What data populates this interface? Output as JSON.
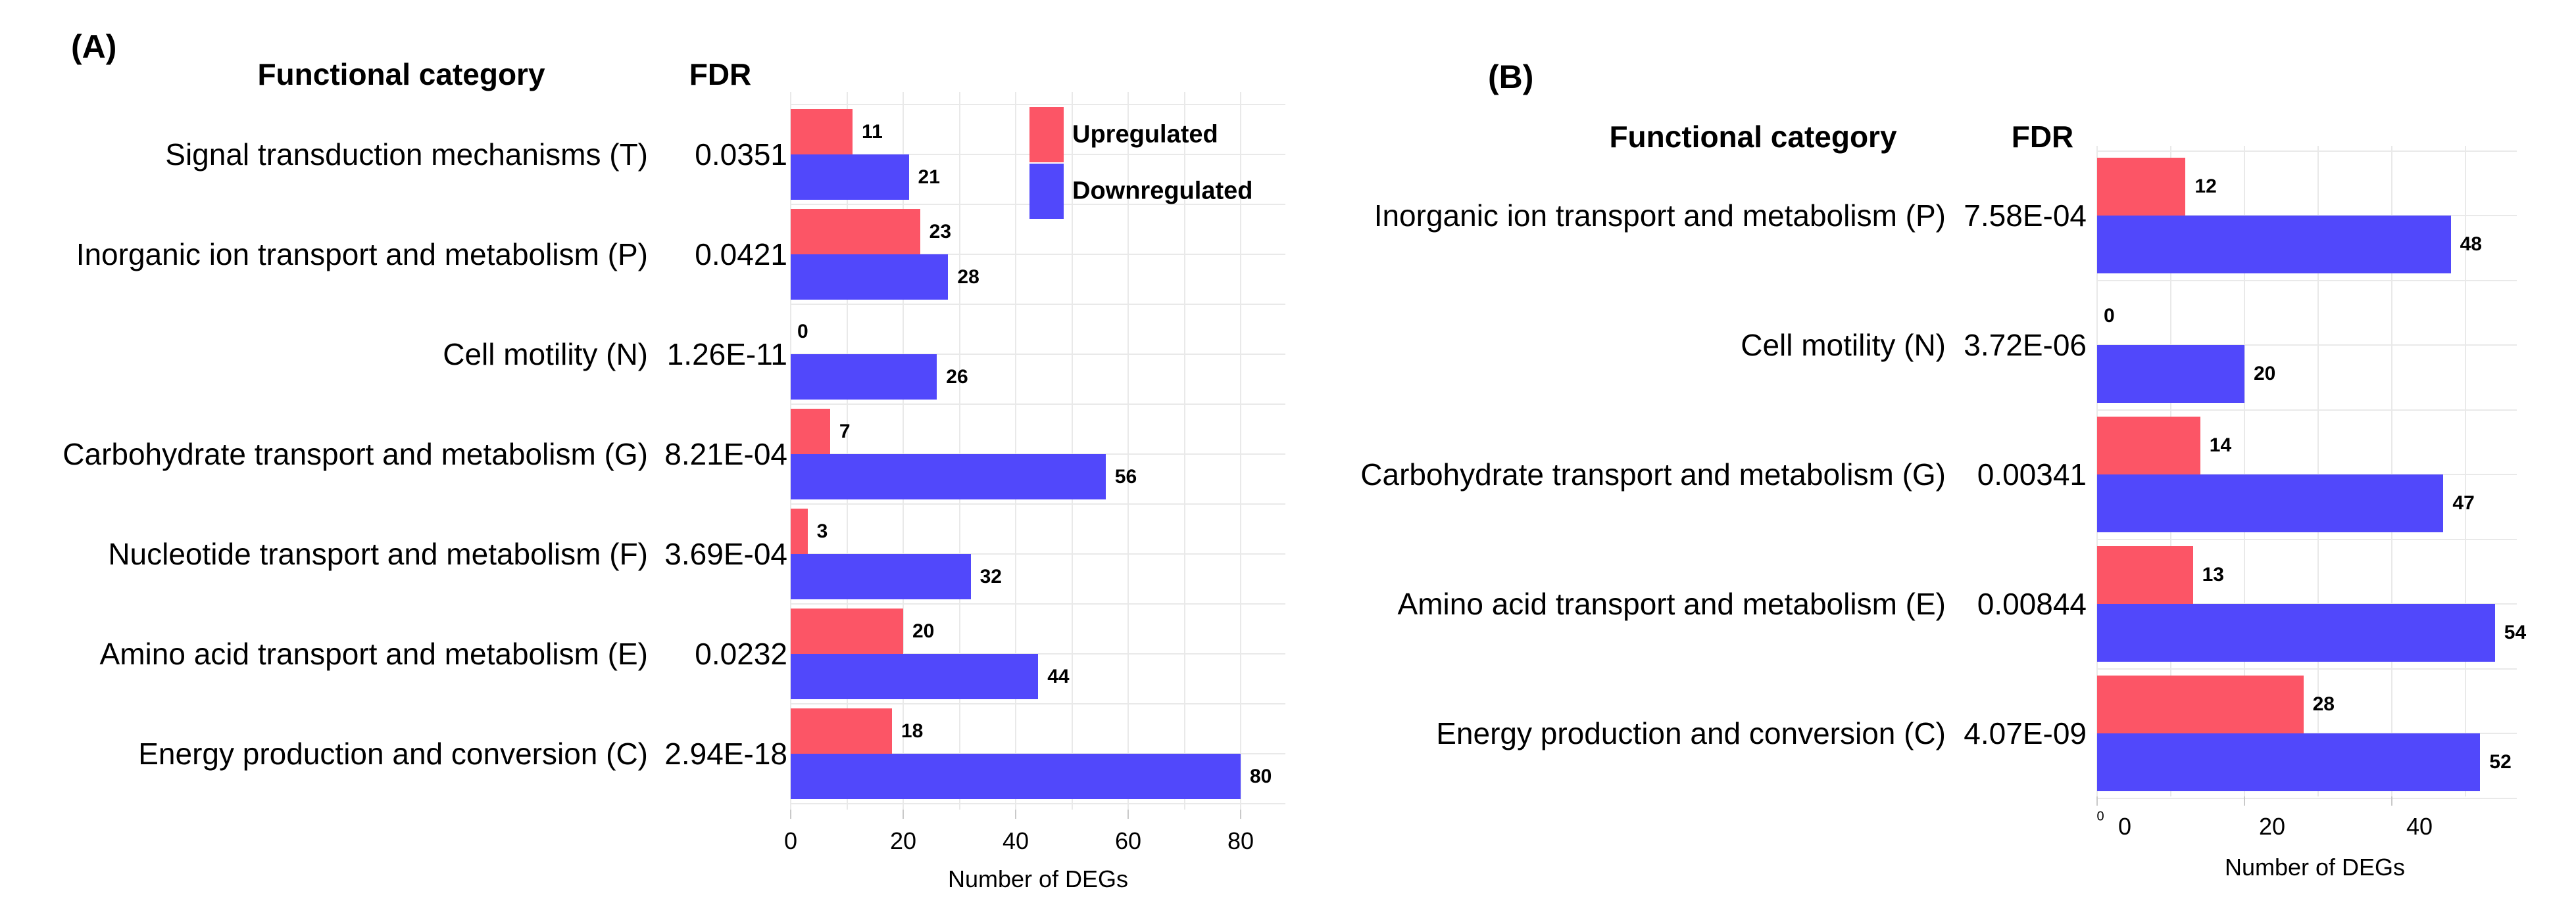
{
  "colors": {
    "upregulated": "#FC5566",
    "downregulated": "#5148FB",
    "gridline": "#E9E9E9",
    "tick": "#C9C9C9"
  },
  "chart_data": [
    {
      "type": "bar",
      "orientation": "horizontal",
      "panel_label": "(A)",
      "headers": {
        "category": "Functional category",
        "fdr": "FDR"
      },
      "legend": [
        {
          "label": "Upregulated",
          "color": "#FC5566"
        },
        {
          "label": "Downregulated",
          "color": "#5148FB"
        }
      ],
      "xlabel": "Number of DEGs",
      "xticks": [
        0,
        20,
        40,
        60,
        80
      ],
      "xlim": [
        0,
        88
      ],
      "grid": true,
      "legend_position": "top-right-inside",
      "rows": [
        {
          "category": "Signal transduction mechanisms (T)",
          "fdr": "0.0351",
          "up": 11,
          "down": 21
        },
        {
          "category": "Inorganic ion transport and metabolism (P)",
          "fdr": "0.0421",
          "up": 23,
          "down": 28
        },
        {
          "category": "Cell motility (N)",
          "fdr": "1.26E-11",
          "up": 0,
          "down": 26
        },
        {
          "category": "Carbohydrate transport and metabolism (G)",
          "fdr": "8.21E-04",
          "up": 7,
          "down": 56
        },
        {
          "category": "Nucleotide transport and metabolism (F)",
          "fdr": "3.69E-04",
          "up": 3,
          "down": 32
        },
        {
          "category": "Amino acid transport and metabolism (E)",
          "fdr": "0.0232",
          "up": 20,
          "down": 44
        },
        {
          "category": "Energy production and conversion (C)",
          "fdr": "2.94E-18",
          "up": 18,
          "down": 80
        }
      ]
    },
    {
      "type": "bar",
      "orientation": "horizontal",
      "panel_label": "(B)",
      "headers": {
        "category": "Functional category",
        "fdr": "FDR"
      },
      "legend": [],
      "xlabel": "Number of DEGs",
      "xticks": [
        0,
        20,
        40
      ],
      "xlim": [
        0,
        57
      ],
      "grid": true,
      "stray_label": "0",
      "rows": [
        {
          "category": "Inorganic ion transport and metabolism (P)",
          "fdr": "7.58E-04",
          "up": 12,
          "down": 48
        },
        {
          "category": "Cell motility (N)",
          "fdr": "3.72E-06",
          "up": 0,
          "down": 20
        },
        {
          "category": "Carbohydrate transport and metabolism (G)",
          "fdr": "0.00341",
          "up": 14,
          "down": 47
        },
        {
          "category": "Amino acid transport and metabolism (E)",
          "fdr": "0.00844",
          "up": 13,
          "down": 54
        },
        {
          "category": "Energy production and conversion (C)",
          "fdr": "4.07E-09",
          "up": 28,
          "down": 52
        }
      ]
    }
  ]
}
